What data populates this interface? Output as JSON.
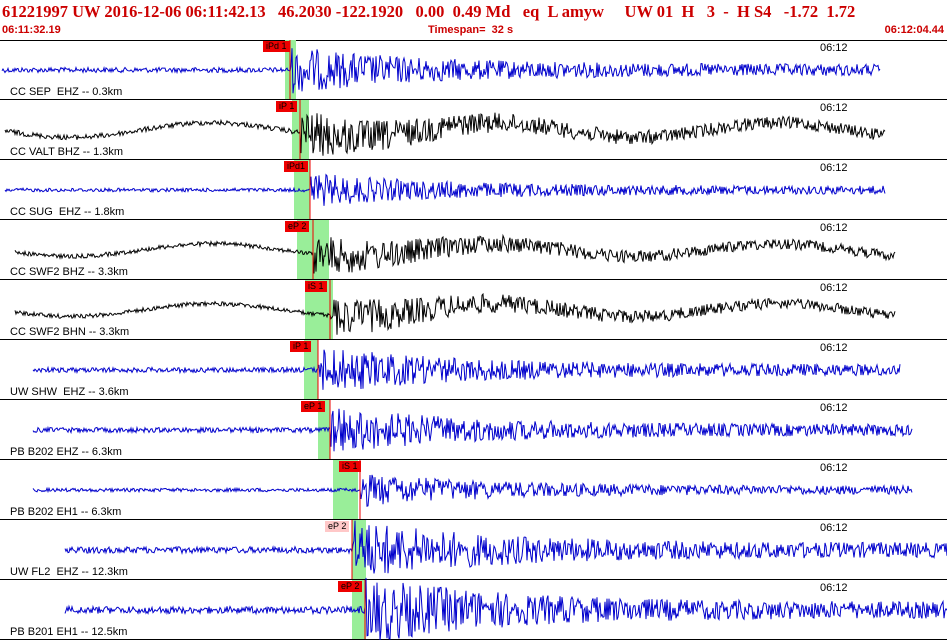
{
  "header": {
    "title": "61221997 UW 2016-12-06 06:11:42.13   46.2030 -122.1920   0.00  0.49 Md   eq  L amyw     UW 01  H   3  -  H S4   -1.72  1.72",
    "start_time": "06:11:32.19",
    "timespan": "Timespan=  32 s",
    "end_time": "06:12:04.44"
  },
  "colors": {
    "trace_blue": "#0000cc",
    "trace_black": "#000000",
    "pick_red": "#ee0000",
    "pick_pink": "#ffc8c8",
    "window_green": "#99ee99",
    "header_red": "#cc0000"
  },
  "channels": [
    {
      "label": "CC SEP  EHZ -- 0.3km",
      "time": "06:12",
      "pick": "iPd 1",
      "pick_style": "red",
      "color": "blue",
      "amp": 0.35
    },
    {
      "label": "CC VALT BHZ -- 1.3km",
      "time": "06:12",
      "pick": "iP 1",
      "pick_style": "red",
      "color": "black",
      "amp": 0.35
    },
    {
      "label": "CC SUG  EHZ -- 1.8km",
      "time": "06:12",
      "pick": "iPd1",
      "pick_style": "red",
      "color": "blue",
      "amp": 0.25
    },
    {
      "label": "CC SWF2 BHZ -- 3.3km",
      "time": "06:12",
      "pick": "eP 2",
      "pick_style": "red",
      "color": "black",
      "amp": 0.3
    },
    {
      "label": "CC SWF2 BHN -- 3.3km",
      "time": "06:12",
      "pick": "iS 1",
      "pick_style": "red",
      "color": "black",
      "amp": 0.3
    },
    {
      "label": "UW SHW  EHZ -- 3.6km",
      "time": "06:12",
      "pick": "iP 1",
      "pick_style": "red",
      "color": "blue",
      "amp": 0.35
    },
    {
      "label": "PB B202 EHZ -- 6.3km",
      "time": "06:12",
      "pick": "eP 1",
      "pick_style": "red",
      "color": "blue",
      "amp": 0.35
    },
    {
      "label": "PB B202 EH1 -- 6.3km",
      "time": "06:12",
      "pick": "iS 1",
      "pick_style": "red",
      "color": "blue",
      "amp": 0.25
    },
    {
      "label": "UW FL2  EHZ -- 12.3km",
      "time": "06:12",
      "pick": "eP 2",
      "pick_style": "pink",
      "color": "blue",
      "amp": 0.45
    },
    {
      "label": "PB B201 EH1 -- 12.5km",
      "time": "06:12",
      "pick": "eP 2",
      "pick_style": "red",
      "color": "blue",
      "amp": 0.5
    }
  ]
}
